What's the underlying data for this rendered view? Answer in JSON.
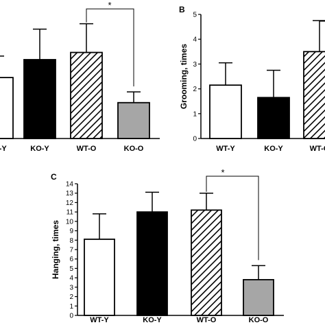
{
  "chart_data": [
    {
      "panel": "A",
      "type": "bar",
      "categories": [
        "WT-Y",
        "KO-Y",
        "WT-O",
        "KO-O"
      ],
      "values": [
        3.4,
        4.4,
        4.8,
        2.0
      ],
      "errors": [
        1.2,
        1.7,
        1.6,
        0.6
      ],
      "fills": [
        "white",
        "black",
        "hatch",
        "gray"
      ],
      "ylabel": "",
      "ylim": [
        0,
        7
      ],
      "significance": [
        {
          "from": 2,
          "to": 3,
          "label": "*"
        }
      ],
      "show_ticks": false
    },
    {
      "panel": "B",
      "type": "bar",
      "categories": [
        "WT-Y",
        "KO-Y",
        "WT-O"
      ],
      "values": [
        2.15,
        1.65,
        3.5
      ],
      "errors": [
        0.9,
        1.1,
        1.25
      ],
      "fills": [
        "white",
        "black",
        "hatch"
      ],
      "ylabel": "Grooming, times",
      "yticks": [
        0,
        1,
        2,
        3,
        4,
        5
      ],
      "ylim": [
        0,
        5
      ],
      "significance": []
    },
    {
      "panel": "C",
      "type": "bar",
      "categories": [
        "WT-Y",
        "KO-Y",
        "WT-O",
        "KO-O"
      ],
      "values": [
        8.1,
        11.0,
        11.2,
        3.8
      ],
      "errors": [
        2.7,
        2.1,
        1.8,
        1.5
      ],
      "fills": [
        "white",
        "black",
        "hatch",
        "gray"
      ],
      "ylabel": "Hanging, times",
      "yticks": [
        0,
        1,
        2,
        3,
        4,
        5,
        6,
        7,
        8,
        9,
        10,
        11,
        12,
        13,
        14
      ],
      "ylim": [
        0,
        14
      ],
      "significance": [
        {
          "from": 2,
          "to": 3,
          "label": "*"
        }
      ]
    }
  ],
  "colors": {
    "gray": "#a6a6a6",
    "black": "#000000",
    "white": "#ffffff"
  }
}
